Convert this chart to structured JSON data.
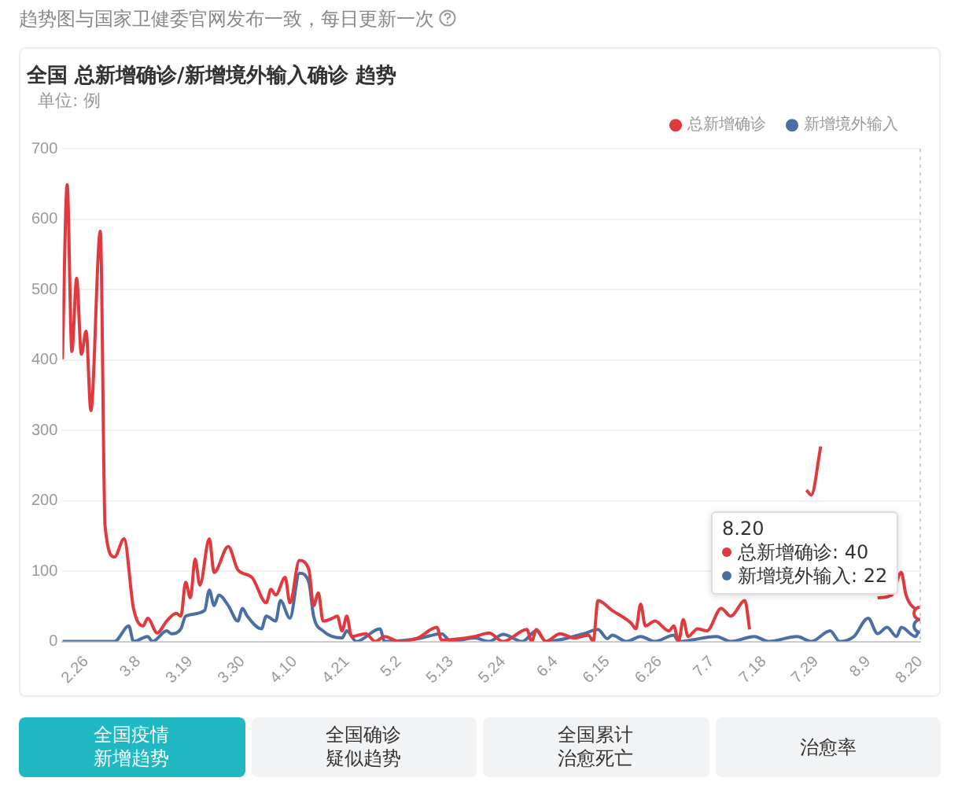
{
  "chart_data": {
    "type": "line",
    "title": "全国 总新增确诊/新增境外输入确诊 趋势",
    "ylabel": "单位: 例",
    "xlim": [
      "--02-21",
      "--08-20"
    ],
    "xticks": [
      {
        "value": "--02-26",
        "label": "2.26"
      },
      {
        "value": "--03-08",
        "label": "3.8"
      },
      {
        "value": "--03-19",
        "label": "3.19"
      },
      {
        "value": "--03-30",
        "label": "3.30"
      },
      {
        "value": "--04-10",
        "label": "4.10"
      },
      {
        "value": "--04-21",
        "label": "4.21"
      },
      {
        "value": "--05-02",
        "label": "5.2"
      },
      {
        "value": "--05-13",
        "label": "5.13"
      },
      {
        "value": "--05-24",
        "label": "5.24"
      },
      {
        "value": "--06-04",
        "label": "6.4"
      },
      {
        "value": "--06-15",
        "label": "6.15"
      },
      {
        "value": "--06-26",
        "label": "6.26"
      },
      {
        "value": "--07-07",
        "label": "7.7"
      },
      {
        "value": "--07-18",
        "label": "7.18"
      },
      {
        "value": "--07-29",
        "label": "7.29"
      },
      {
        "value": "--08-09",
        "label": "8.9"
      },
      {
        "value": "--08-20",
        "label": "8.20"
      }
    ],
    "ylim": [
      0,
      700
    ],
    "yticks": [
      0,
      100,
      200,
      300,
      400,
      500,
      600,
      700
    ],
    "grid": "y",
    "legend": "top right",
    "marker": "none",
    "line_style": "solid",
    "ref_lines": [
      {
        "axis": "x",
        "value": "--08-20",
        "color": "#cccccc",
        "line_style": "dotted"
      }
    ],
    "annotations": [
      "趋势图与国家卫健委官网发布一致，每日更新一次",
      "全国疫情新增趋势",
      "全国确诊疑似趋势",
      "全国累计治愈死亡",
      "治愈率",
      "8.20",
      "总新增确诊: 40",
      "新增境外输入: 22"
    ],
    "series": [
      {
        "name": "总新增确诊",
        "color": "#e0393e",
        "x": [
          "--02-21",
          "--02-22",
          "--02-23",
          "--02-24",
          "--02-25",
          "--02-26",
          "--02-27",
          "--02-29",
          "--03-01",
          "--03-03",
          "--03-05",
          "--03-07",
          "--03-09",
          "--03-10",
          "--03-12",
          "--03-14",
          "--03-16",
          "--03-17",
          "--03-18",
          "--03-19",
          "--03-20",
          "--03-21",
          "--03-23",
          "--03-24",
          "--03-27",
          "--03-29",
          "--04-01",
          "--04-04",
          "--04-05",
          "--04-06",
          "--04-08",
          "--04-09",
          "--04-11",
          "--04-13",
          "--04-14",
          "--04-15",
          "--04-16",
          "--04-18",
          "--04-19",
          "--04-20",
          "--04-21",
          "--04-22",
          "--04-25",
          "--04-27",
          "--04-29",
          "--05-02",
          "--05-06",
          "--05-10",
          "--05-11",
          "--05-18",
          "--05-21",
          "--05-24",
          "--05-29",
          "--05-30",
          "--05-31",
          "--06-02",
          "--06-05",
          "--06-08",
          "--06-11",
          "--06-12",
          "--06-13",
          "--06-16",
          "--06-20",
          "--06-21",
          "--06-22",
          "--06-23",
          "--06-25",
          "--06-28",
          "--06-29",
          "--06-30",
          "--07-01",
          "--07-02",
          "--07-04",
          "--07-06",
          "--07-09",
          "--07-11",
          "--07-14",
          "--07-15",
          "--07-16",
          "--07-17",
          "--07-25",
          "--07-27",
          "--07-28",
          "--07-30",
          "--07-31",
          "--08-01",
          "--08-11",
          "--08-14",
          "--08-16",
          "--08-17",
          "--08-20"
        ],
        "values": [
          401,
          649,
          412,
          516,
          408,
          441,
          328,
          583,
          164,
          120,
          146,
          47,
          22,
          33,
          12,
          29,
          40,
          36,
          84,
          62,
          117,
          80,
          146,
          98,
          135,
          102,
          91,
          55,
          74,
          66,
          91,
          55,
          115,
          102,
          51,
          69,
          29,
          33,
          36,
          15,
          36,
          7,
          11,
          0,
          7,
          0,
          5,
          20,
          2,
          7,
          12,
          0,
          17,
          0,
          17,
          0,
          11,
          5,
          9,
          0,
          58,
          44,
          26,
          18,
          53,
          22,
          29,
          15,
          22,
          0,
          31,
          7,
          18,
          15,
          47,
          36,
          58,
          17,
          null,
          null,
          null,
          215,
          208,
          277,
          null,
          null,
          62,
          66,
          98,
          66,
          40
        ]
      },
      {
        "name": "新增境外输入",
        "color": "#4a6fa5",
        "x": [
          "--02-21",
          "--03-03",
          "--03-06",
          "--03-07",
          "--03-10",
          "--03-11",
          "--03-14",
          "--03-15",
          "--03-17",
          "--03-18",
          "--03-22",
          "--03-23",
          "--03-24",
          "--03-25",
          "--03-27",
          "--03-29",
          "--03-30",
          "--03-31",
          "--04-03",
          "--04-04",
          "--04-06",
          "--04-07",
          "--04-09",
          "--04-11",
          "--04-13",
          "--04-14",
          "--04-16",
          "--04-20",
          "--04-21",
          "--04-23",
          "--04-28",
          "--04-29",
          "--05-06",
          "--05-11",
          "--05-13",
          "--05-18",
          "--05-21",
          "--05-24",
          "--05-28",
          "--05-31",
          "--06-02",
          "--06-10",
          "--06-13",
          "--06-15",
          "--06-16",
          "--06-19",
          "--06-22",
          "--06-25",
          "--06-29",
          "--06-30",
          "--07-08",
          "--07-11",
          "--07-16",
          "--07-19",
          "--07-25",
          "--07-28",
          "--08-01",
          "--08-03",
          "--08-06",
          "--08-09",
          "--08-11",
          "--08-13",
          "--08-15",
          "--08-16",
          "--08-19",
          "--08-20"
        ],
        "values": [
          0,
          0,
          22,
          0,
          7,
          0,
          15,
          11,
          18,
          36,
          44,
          73,
          51,
          66,
          51,
          29,
          47,
          36,
          18,
          36,
          29,
          58,
          33,
          97,
          84,
          36,
          15,
          5,
          15,
          0,
          18,
          0,
          4,
          11,
          0,
          5,
          0,
          10,
          0,
          15,
          0,
          11,
          17,
          4,
          9,
          0,
          7,
          0,
          9,
          0,
          7,
          0,
          7,
          0,
          7,
          0,
          15,
          0,
          7,
          33,
          11,
          20,
          7,
          20,
          7,
          22
        ]
      }
    ]
  }
}
